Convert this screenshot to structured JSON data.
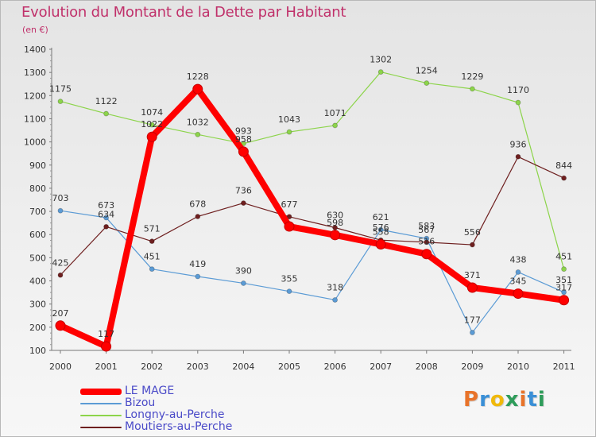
{
  "title": "Evolution du Montant de la Dette par Habitant",
  "unit": "(en €)",
  "logo": "Proxiti",
  "chart_data": {
    "type": "line",
    "title": "Evolution du Montant de la Dette par Habitant",
    "ylabel": "(en €)",
    "x": [
      "2000",
      "2001",
      "2002",
      "2003",
      "2004",
      "2005",
      "2006",
      "2007",
      "2008",
      "2009",
      "2010",
      "2011"
    ],
    "ylim": [
      100,
      1400
    ],
    "yticks": [
      100,
      200,
      300,
      400,
      500,
      600,
      700,
      800,
      900,
      1000,
      1100,
      1200,
      1300,
      1400
    ],
    "grid": false,
    "legend_position": "bottom-left",
    "series": [
      {
        "name": "LE MAGE",
        "color": "#ff0000",
        "values": [
          207,
          117,
          1022,
          1228,
          958,
          635,
          598,
          558,
          516,
          371,
          345,
          317
        ],
        "labels": [
          "207",
          "117",
          "1022",
          "1228",
          "958",
          "",
          "598",
          "558",
          "516",
          "371",
          "345",
          "317"
        ]
      },
      {
        "name": "Bizou",
        "color": "#5b9bd5",
        "values": [
          703,
          673,
          451,
          419,
          390,
          355,
          318,
          621,
          583,
          177,
          438,
          351
        ],
        "labels": [
          "703",
          "673",
          "451",
          "419",
          "390",
          "355",
          "318",
          "621",
          "583",
          "177",
          "438",
          "351"
        ]
      },
      {
        "name": "Longny-au-Perche",
        "color": "#8cd44a",
        "values": [
          1175,
          1122,
          1074,
          1032,
          993,
          1043,
          1071,
          1302,
          1254,
          1229,
          1170,
          451
        ],
        "labels": [
          "1175",
          "1122",
          "1074",
          "1032",
          "993",
          "1043",
          "1071",
          "1302",
          "1254",
          "1229",
          "1170",
          "451"
        ]
      },
      {
        "name": "Moutiers-au-Perche",
        "color": "#6e1f1f",
        "values": [
          425,
          634,
          571,
          678,
          736,
          677,
          630,
          576,
          567,
          556,
          936,
          844
        ],
        "labels": [
          "425",
          "634",
          "571",
          "678",
          "736",
          "677",
          "630",
          "576",
          "567",
          "556",
          "936",
          "844"
        ]
      }
    ]
  }
}
